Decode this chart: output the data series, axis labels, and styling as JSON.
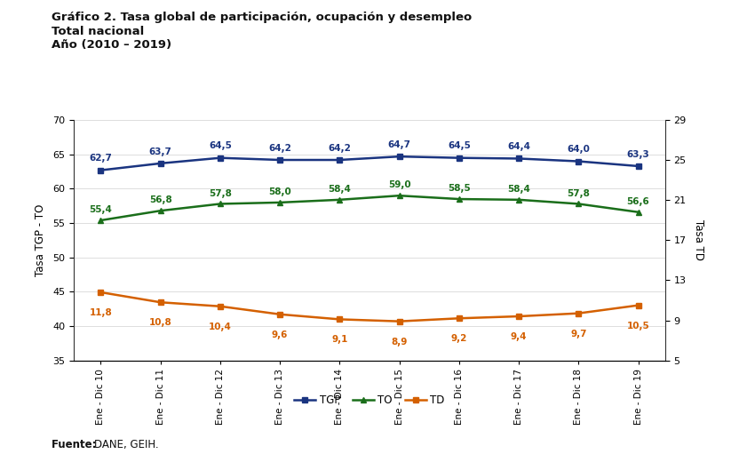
{
  "title_line1": "Gráfico 2. Tasa global de participación, ocupación y desempleo",
  "title_line2": "Total nacional",
  "title_line3": "Año (2010 – 2019)",
  "x_labels": [
    "Ene - Dic 10",
    "Ene - Dic 11",
    "Ene - Dic 12",
    "Ene - Dic 13",
    "Ene - Dic 14",
    "Ene - Dic 15",
    "Ene - Dic 16",
    "Ene - Dic 17",
    "Ene - Dic 18",
    "Ene - Dic 19"
  ],
  "TGP": [
    62.7,
    63.7,
    64.5,
    64.2,
    64.2,
    64.7,
    64.5,
    64.4,
    64.0,
    63.3
  ],
  "TO": [
    55.4,
    56.8,
    57.8,
    58.0,
    58.4,
    59.0,
    58.5,
    58.4,
    57.8,
    56.6
  ],
  "TD": [
    11.8,
    10.8,
    10.4,
    9.6,
    9.1,
    8.9,
    9.2,
    9.4,
    9.7,
    10.5
  ],
  "color_TGP": "#1a3480",
  "color_TO": "#1a6e1a",
  "color_TD": "#d46000",
  "ylim_left": [
    35,
    70
  ],
  "ylim_right": [
    5,
    29
  ],
  "yticks_left": [
    35,
    40,
    45,
    50,
    55,
    60,
    65,
    70
  ],
  "yticks_right": [
    5,
    9,
    13,
    17,
    21,
    25,
    29
  ],
  "ylabel_left": "Tasa TGP - TO",
  "ylabel_right": "Tasa TD",
  "footer_text": "DANE, GEIH.",
  "footer_bold": "Fuente:",
  "background_color": "#ffffff"
}
